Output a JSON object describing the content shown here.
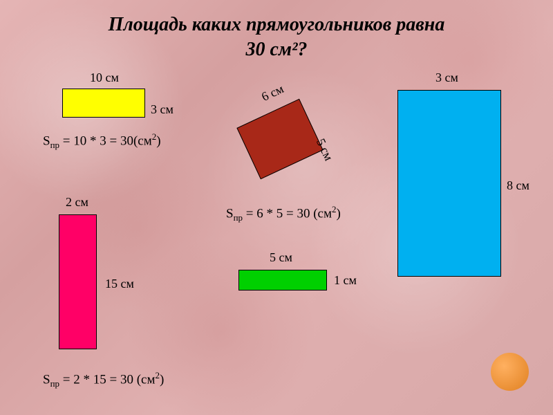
{
  "title_line1": "Площадь каких прямоугольников равна",
  "title_line2": "30 см²?",
  "background_color": "#d8a8a8",
  "shapes": {
    "yellow": {
      "type": "rectangle",
      "color": "#ffff00",
      "width_cm": 10,
      "height_cm": 3,
      "top_label": "10 см",
      "right_label": "3 см",
      "formula_prefix": "S",
      "formula_sub": "пр",
      "formula_body": " = 10 * 3 = 30(см",
      "formula_sup": "2",
      "formula_suffix": ")"
    },
    "darkred": {
      "type": "rectangle",
      "color": "#a82818",
      "rotation_deg": -25,
      "width_cm": 6,
      "height_cm": 5,
      "top_label": "6 см",
      "right_label": "5 см",
      "formula_prefix": "S",
      "formula_sub": "пр",
      "formula_body": " = 6 * 5 = 30 (см",
      "formula_sup": "2",
      "formula_suffix": ")"
    },
    "cyan": {
      "type": "rectangle",
      "color": "#00b0f0",
      "width_cm": 3,
      "height_cm": 8,
      "top_label": "3 см",
      "right_label": "8 см"
    },
    "magenta": {
      "type": "rectangle",
      "color": "#ff0066",
      "width_cm": 2,
      "height_cm": 15,
      "top_label": "2 см",
      "right_label": "15 см",
      "formula_prefix": "S",
      "formula_sub": "пр",
      "formula_body": " = 2 * 15 = 30 (см",
      "formula_sup": "2",
      "formula_suffix": ")"
    },
    "green": {
      "type": "rectangle",
      "color": "#00d000",
      "width_cm": 5,
      "height_cm": 1,
      "top_label": "5 см",
      "right_label": "1 см"
    }
  },
  "decoration": {
    "orange_circle_color": "#e08020"
  },
  "typography": {
    "title_fontsize": 28,
    "label_fontsize": 18,
    "formula_fontsize": 19,
    "font_family": "Times New Roman"
  }
}
